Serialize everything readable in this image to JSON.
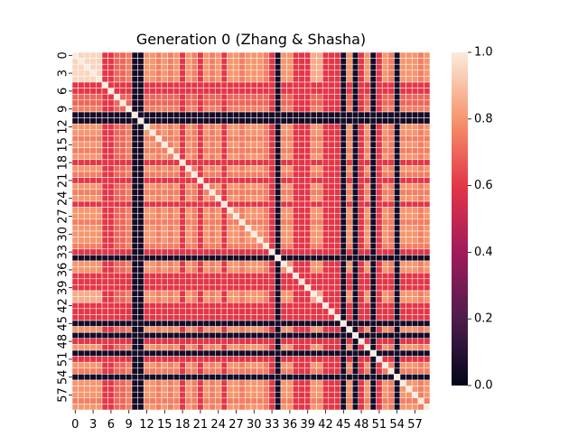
{
  "chart_data": {
    "type": "heatmap",
    "title": "Generation 0 (Zhang & Shasha)",
    "xlabel": "",
    "ylabel": "",
    "n": 60,
    "x_ticks": [
      "0",
      "3",
      "6",
      "9",
      "12",
      "15",
      "18",
      "21",
      "24",
      "27",
      "30",
      "33",
      "36",
      "39",
      "42",
      "45",
      "48",
      "51",
      "54",
      "57"
    ],
    "y_ticks": [
      "0",
      "3",
      "6",
      "9",
      "12",
      "15",
      "18",
      "21",
      "24",
      "27",
      "30",
      "33",
      "36",
      "39",
      "42",
      "45",
      "48",
      "51",
      "54",
      "57"
    ],
    "tick_step": 3,
    "vmin": 0.0,
    "vmax": 1.0,
    "colorbar_ticks": [
      "0.0",
      "0.2",
      "0.4",
      "0.6",
      "0.8",
      "1.0"
    ],
    "colormap": "rocket",
    "grid_line_color": "#ffffff",
    "dark_rows": [
      10,
      11,
      34,
      45,
      47,
      50,
      54
    ],
    "row_profile": {
      "0": 0.95,
      "1": 0.95,
      "2": 0.95,
      "3": 0.95,
      "4": 0.95,
      "5": 0.6,
      "6": 0.6,
      "7": 0.7,
      "8": 0.7,
      "9": 0.75,
      "12": 0.8,
      "13": 0.8,
      "14": 0.75,
      "15": 0.8,
      "16": 0.75,
      "17": 0.8,
      "18": 0.6,
      "19": 0.8,
      "20": 0.75,
      "21": 0.6,
      "22": 0.8,
      "23": 0.75,
      "24": 0.8,
      "25": 0.6,
      "26": 0.8,
      "27": 0.8,
      "28": 0.75,
      "29": 0.8,
      "30": 0.8,
      "31": 0.8,
      "32": 0.75,
      "33": 0.6,
      "35": 0.8,
      "36": 0.8,
      "37": 0.6,
      "38": 0.6,
      "39": 0.6,
      "40": 0.85,
      "41": 0.85,
      "42": 0.6,
      "43": 0.6,
      "44": 0.6,
      "46": 0.8,
      "48": 0.6,
      "49": 0.8,
      "51": 0.6,
      "52": 0.8,
      "53": 0.75,
      "55": 0.8,
      "56": 0.8,
      "57": 0.8,
      "58": 0.75,
      "59": 0.8
    },
    "default_value": 0.78,
    "dark_value": 0.05,
    "note_values": "approximate pairwise similarity matrix, symmetric, diagonal = 1.0"
  }
}
